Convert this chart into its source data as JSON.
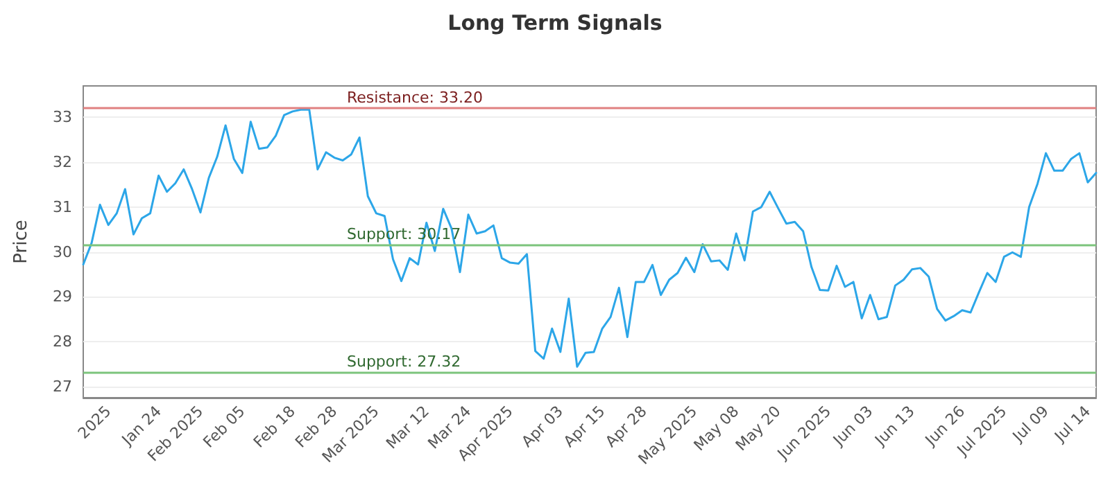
{
  "chart_data": {
    "type": "line",
    "title": "Long Term Signals",
    "ylabel": "Price",
    "categories": [
      null,
      null,
      null,
      "2025",
      null,
      null,
      null,
      null,
      null,
      "Jan 24",
      null,
      null,
      null,
      null,
      "Feb 2025",
      null,
      null,
      null,
      null,
      "Feb 05",
      null,
      null,
      null,
      null,
      null,
      "Feb 18",
      null,
      null,
      null,
      null,
      "Feb 28",
      null,
      null,
      null,
      null,
      "Mar 2025",
      null,
      null,
      null,
      null,
      null,
      "Mar 12",
      null,
      null,
      null,
      null,
      "Mar 24",
      null,
      null,
      null,
      null,
      "Apr 2025",
      null,
      null,
      null,
      null,
      null,
      "Apr 03",
      null,
      null,
      null,
      null,
      "Apr 15",
      null,
      null,
      null,
      null,
      "Apr 28",
      null,
      null,
      null,
      null,
      null,
      "May 2025",
      null,
      null,
      null,
      null,
      "May 08",
      null,
      null,
      null,
      null,
      "May 20",
      null,
      null,
      null,
      null,
      null,
      "Jun 2025",
      null,
      null,
      null,
      null,
      "Jun 03",
      null,
      null,
      null,
      null,
      "Jun 13",
      null,
      null,
      null,
      null,
      null,
      "Jun 26",
      null,
      null,
      null,
      null,
      "Jul 2025",
      null,
      null,
      null,
      null,
      "Jul 09",
      null,
      null,
      null,
      null,
      "Jul 14",
      null
    ],
    "series": [
      {
        "color": "#2ca6e8",
        "values": [
          29.72,
          30.2,
          31.05,
          30.6,
          30.86,
          31.4,
          30.39,
          30.75,
          30.86,
          31.7,
          31.34,
          31.53,
          31.84,
          31.4,
          30.88,
          31.65,
          32.12,
          32.82,
          32.07,
          31.76,
          32.9,
          32.3,
          32.33,
          32.59,
          33.05,
          33.13,
          33.17,
          33.17,
          31.84,
          32.22,
          32.1,
          32.04,
          32.17,
          32.55,
          31.24,
          30.86,
          30.8,
          29.84,
          29.35,
          29.86,
          29.72,
          30.65,
          30.02,
          30.96,
          30.52,
          29.55,
          30.83,
          30.41,
          30.46,
          30.59,
          29.86,
          29.76,
          29.74,
          29.95,
          27.79,
          27.62,
          28.29,
          27.77,
          28.96,
          27.44,
          27.75,
          27.77,
          28.29,
          28.55,
          29.2,
          28.1,
          29.33,
          29.33,
          29.71,
          29.04,
          29.38,
          29.53,
          29.87,
          29.55,
          30.17,
          29.79,
          29.81,
          29.6,
          30.41,
          29.81,
          30.9,
          31.0,
          31.34,
          30.98,
          30.63,
          30.67,
          30.46,
          29.66,
          29.15,
          29.14,
          29.69,
          29.22,
          29.33,
          28.52,
          29.04,
          28.5,
          28.55,
          29.25,
          29.38,
          29.61,
          29.64,
          29.45,
          28.73,
          28.47,
          28.57,
          28.7,
          28.65,
          29.1,
          29.53,
          29.33,
          29.89,
          29.99,
          29.89,
          31.0,
          31.52,
          32.2,
          31.81,
          31.81,
          32.07,
          32.2,
          31.55,
          31.76
        ]
      }
    ],
    "ylim": [
      26.75,
      33.7
    ],
    "yticks": [
      27,
      28,
      29,
      30,
      31,
      32,
      33
    ],
    "grid": "y",
    "marker": "none",
    "line_style": "solid",
    "ref_lines": [
      {
        "axis": "y",
        "value": 33.2,
        "label": "Resistance: 33.20",
        "color": "#e08080"
      },
      {
        "axis": "y",
        "value": 30.17,
        "label": "Support: 30.17",
        "color": "#7cc47c"
      },
      {
        "axis": "y",
        "value": 27.32,
        "label": "Support: 27.32",
        "color": "#7cc47c"
      }
    ]
  }
}
